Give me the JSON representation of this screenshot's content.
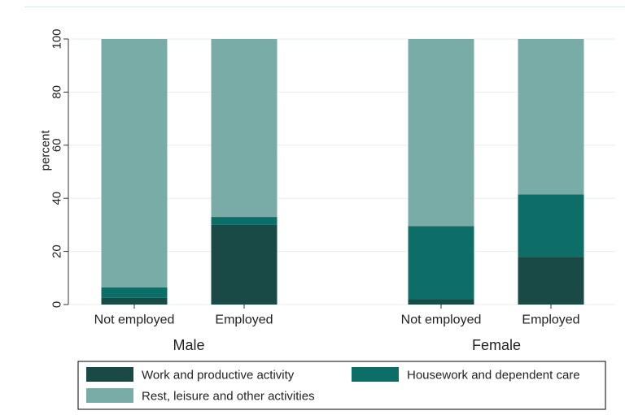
{
  "chart_data": {
    "type": "bar",
    "stacked": true,
    "ylabel": "percent",
    "ylim": [
      0,
      100
    ],
    "yticks": [
      0,
      20,
      40,
      60,
      80,
      100
    ],
    "grid": true,
    "legend_position": "bottom",
    "groups": [
      {
        "label": "Male",
        "bars": [
          {
            "label": "Not employed",
            "values": [
              2.5,
              4,
              93.5
            ]
          },
          {
            "label": "Employed",
            "values": [
              30,
              3,
              67
            ]
          }
        ]
      },
      {
        "label": "Female",
        "bars": [
          {
            "label": "Not employed",
            "values": [
              2,
              27.5,
              70.5
            ]
          },
          {
            "label": "Employed",
            "values": [
              18,
              23.5,
              58.5
            ]
          }
        ]
      }
    ],
    "series": [
      {
        "name": "Work and productive activity",
        "color": "#1a4a46"
      },
      {
        "name": "Housework and dependent care",
        "color": "#0c6e66"
      },
      {
        "name": "Rest, leisure and other activities",
        "color": "#79aca7"
      }
    ]
  }
}
